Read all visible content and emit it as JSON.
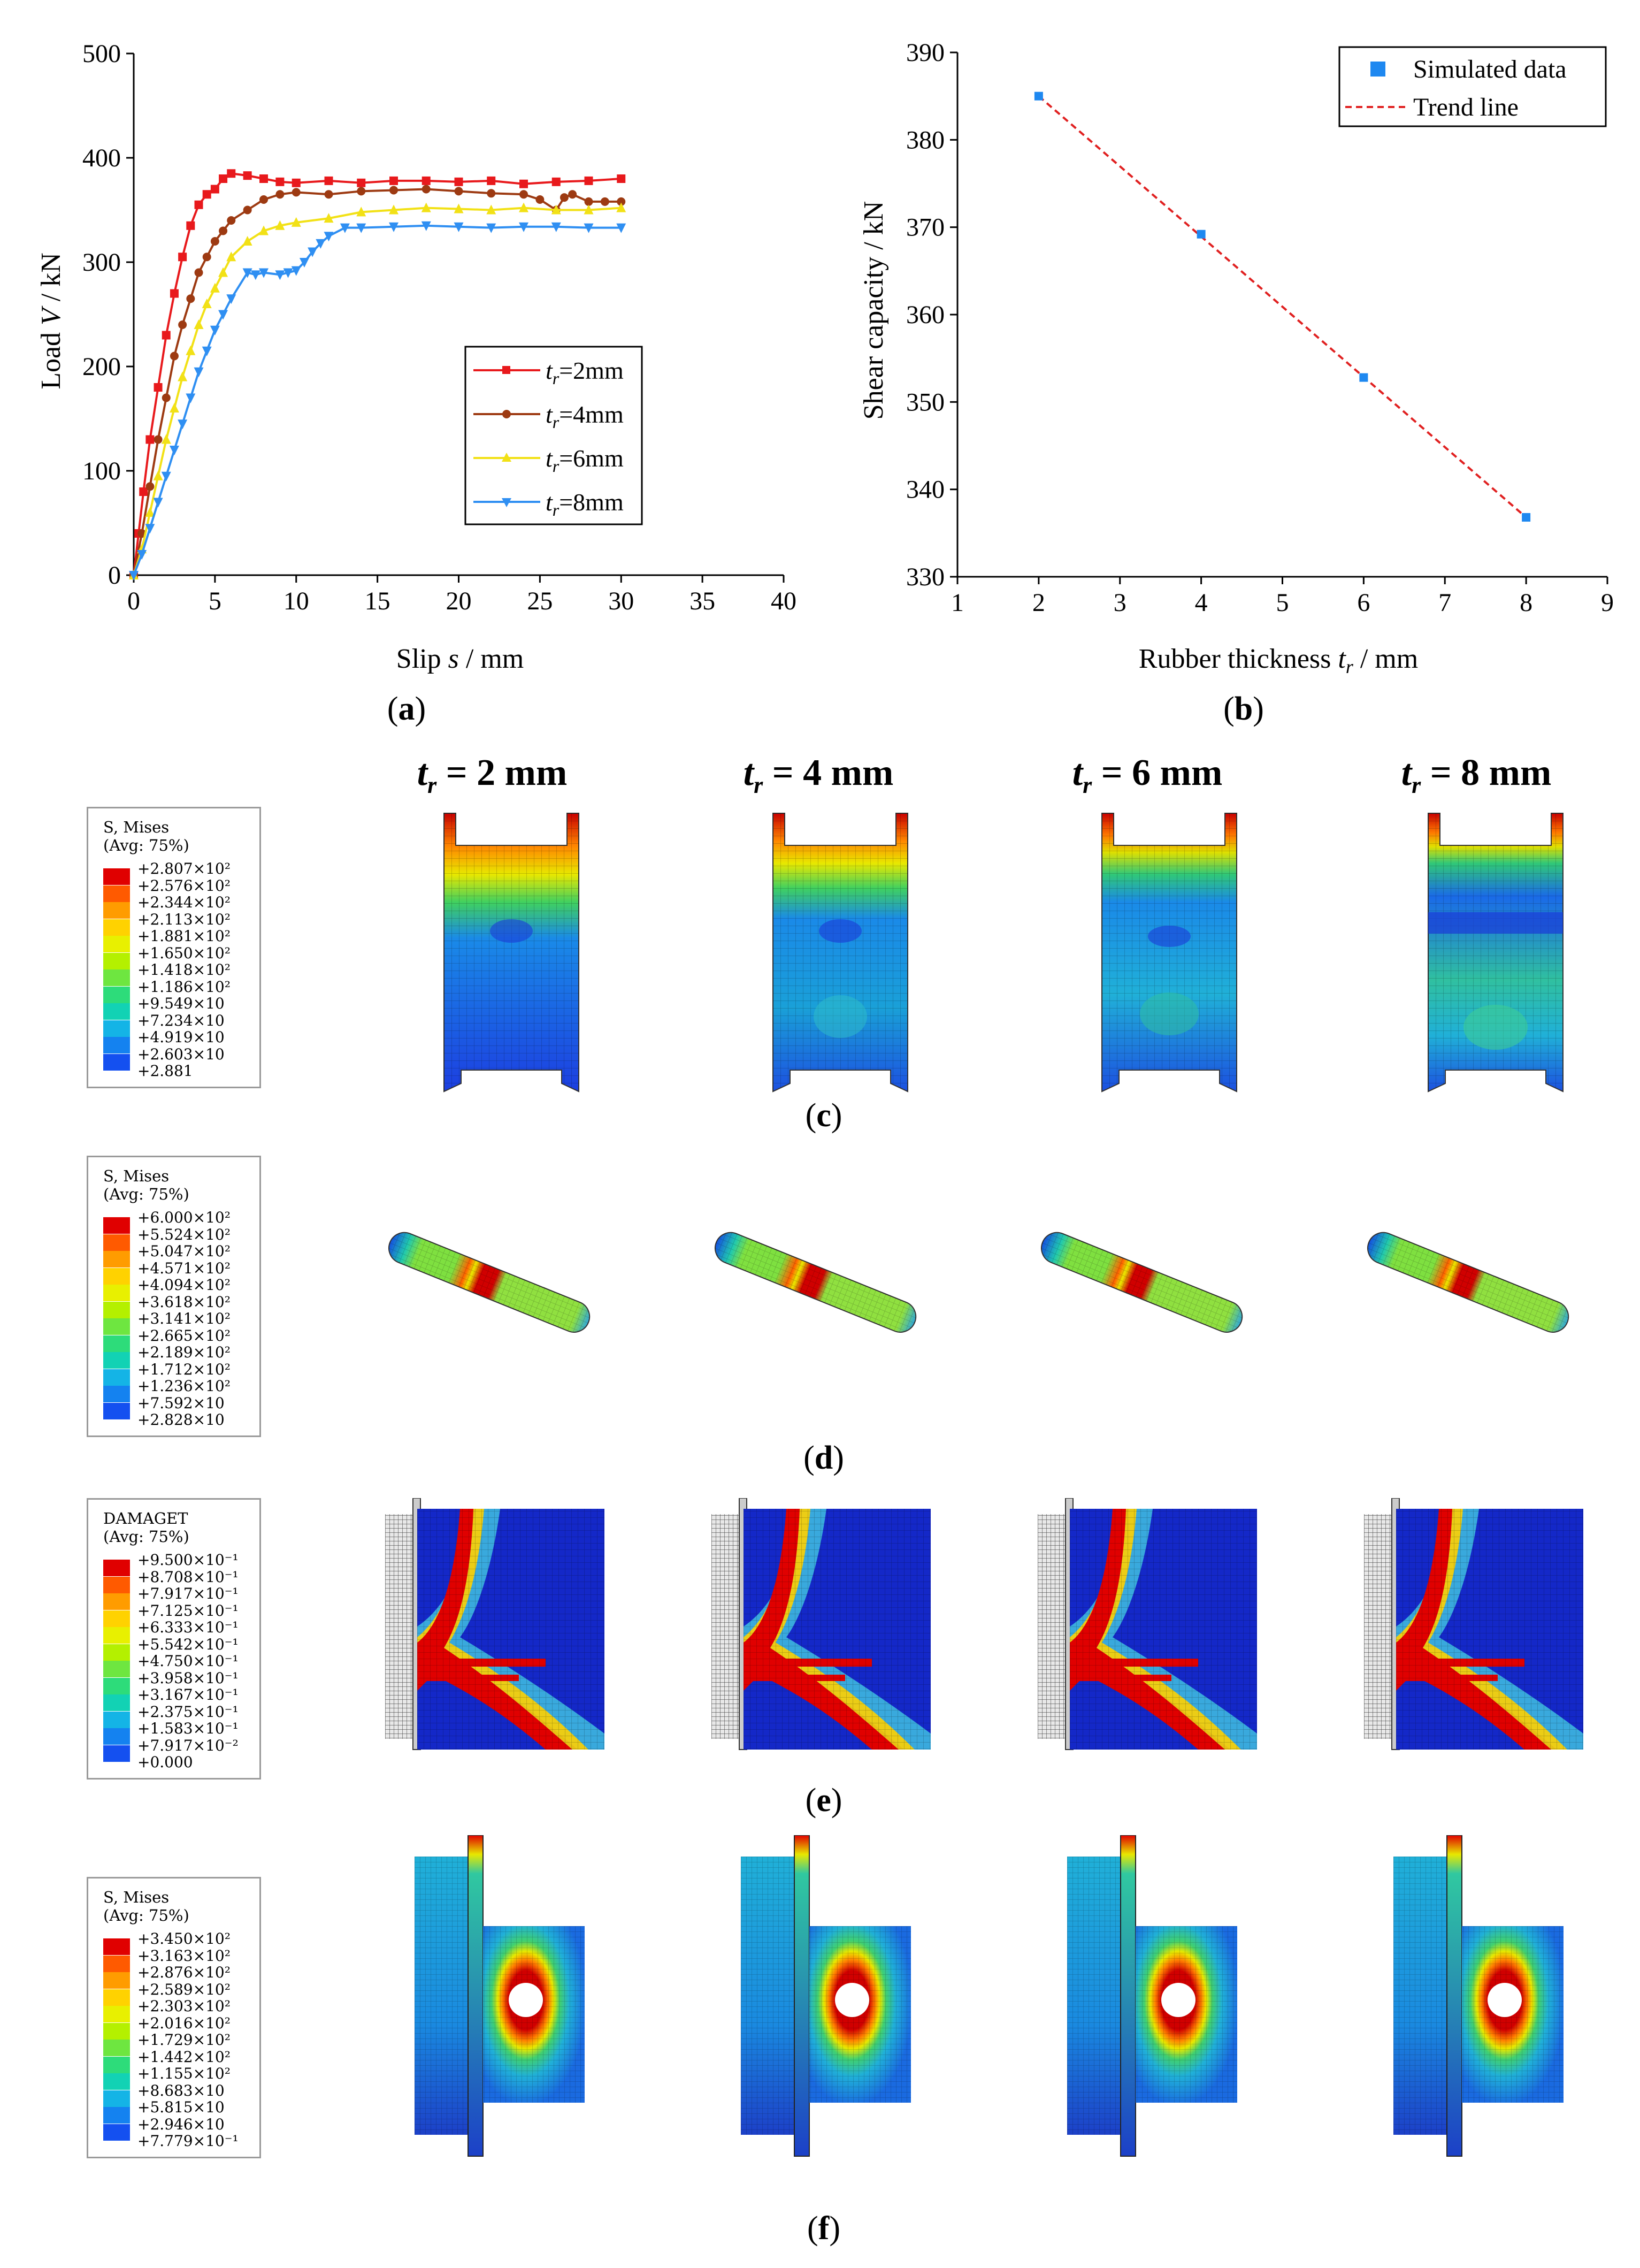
{
  "chart_data": [
    {
      "panel": "a",
      "type": "line",
      "xlabel_pre": "Slip ",
      "xlabel_var": "s",
      "xlabel_post": " / mm",
      "ylabel_pre": "Load ",
      "ylabel_var": "V",
      "ylabel_post": " / kN",
      "xlim": [
        0,
        40
      ],
      "ylim": [
        0,
        500
      ],
      "xticks": [
        0,
        5,
        10,
        15,
        20,
        25,
        30,
        35,
        40
      ],
      "yticks": [
        0,
        100,
        200,
        300,
        400,
        500
      ],
      "series": [
        {
          "name": "tr=2mm",
          "label_var": "t",
          "label_sub": "r",
          "label_post": "=2mm",
          "color": "#e8191c",
          "marker": "square",
          "x": [
            0,
            0.3,
            0.6,
            1,
            1.5,
            2,
            2.5,
            3,
            3.5,
            4,
            4.5,
            5,
            5.5,
            6,
            7,
            8,
            9,
            10,
            12,
            14,
            16,
            18,
            20,
            22,
            24,
            26,
            28,
            30
          ],
          "y": [
            0,
            40,
            80,
            130,
            180,
            230,
            270,
            305,
            335,
            355,
            365,
            370,
            380,
            385,
            383,
            380,
            377,
            376,
            378,
            376,
            378,
            378,
            377,
            378,
            375,
            377,
            378,
            380
          ]
        },
        {
          "name": "tr=4mm",
          "label_var": "t",
          "label_sub": "r",
          "label_post": "=4mm",
          "color": "#9d3a12",
          "marker": "circle",
          "x": [
            0,
            0.5,
            1,
            1.5,
            2,
            2.5,
            3,
            3.5,
            4,
            4.5,
            5,
            5.5,
            6,
            7,
            8,
            9,
            10,
            12,
            14,
            16,
            18,
            20,
            22,
            24,
            25,
            26,
            26.5,
            27,
            28,
            29,
            30
          ],
          "y": [
            0,
            40,
            85,
            130,
            170,
            210,
            240,
            265,
            290,
            305,
            320,
            330,
            340,
            350,
            360,
            365,
            367,
            365,
            368,
            369,
            370,
            368,
            366,
            365,
            360,
            350,
            362,
            365,
            358,
            358,
            358
          ]
        },
        {
          "name": "tr=6mm",
          "label_var": "t",
          "label_sub": "r",
          "label_post": "=6mm",
          "color": "#f2e116",
          "marker": "triangle-up",
          "x": [
            0,
            0.5,
            1,
            1.5,
            2,
            2.5,
            3,
            3.5,
            4,
            4.5,
            5,
            5.5,
            6,
            7,
            8,
            9,
            10,
            12,
            14,
            16,
            18,
            20,
            22,
            24,
            26,
            28,
            30
          ],
          "y": [
            0,
            25,
            60,
            95,
            130,
            160,
            190,
            215,
            240,
            260,
            275,
            290,
            305,
            320,
            330,
            335,
            338,
            342,
            348,
            350,
            352,
            351,
            350,
            352,
            350,
            350,
            352
          ]
        },
        {
          "name": "tr=8mm",
          "label_var": "t",
          "label_sub": "r",
          "label_post": "=8mm",
          "color": "#2f8ff2",
          "marker": "triangle-down",
          "x": [
            0,
            0.5,
            1,
            1.5,
            2,
            2.5,
            3,
            3.5,
            4,
            4.5,
            5,
            5.5,
            6,
            7,
            7.5,
            8,
            9,
            9.5,
            10,
            10.5,
            11,
            11.5,
            12,
            13,
            14,
            16,
            18,
            20,
            22,
            24,
            26,
            28,
            30
          ],
          "y": [
            0,
            20,
            45,
            70,
            95,
            120,
            145,
            170,
            195,
            215,
            235,
            250,
            265,
            290,
            288,
            290,
            288,
            290,
            292,
            300,
            310,
            318,
            325,
            333,
            333,
            334,
            335,
            334,
            333,
            334,
            334,
            333,
            333
          ]
        }
      ]
    },
    {
      "panel": "b",
      "type": "scatter",
      "xlabel_pre": "Rubber thickness ",
      "xlabel_var": "t",
      "xlabel_sub": "r",
      "xlabel_post": " / mm",
      "ylabel": "Shear capacity / kN",
      "xlim": [
        1,
        9
      ],
      "ylim": [
        330,
        390
      ],
      "xticks": [
        1,
        2,
        3,
        4,
        5,
        6,
        7,
        8,
        9
      ],
      "yticks": [
        330,
        340,
        350,
        360,
        370,
        380,
        390
      ],
      "series": [
        {
          "name": "Simulated data",
          "color": "#1e88f0",
          "marker": "square",
          "x": [
            2,
            4,
            6,
            8
          ],
          "y": [
            385,
            369.2,
            352.8,
            336.8
          ]
        },
        {
          "name": "Trend line",
          "color": "#e02020",
          "style": "dashed",
          "x": [
            2,
            8
          ],
          "y": [
            385,
            336.8
          ]
        }
      ]
    }
  ],
  "captions": {
    "a": "a",
    "b": "b",
    "c": "c",
    "d": "d",
    "e": "e",
    "f": "f"
  },
  "columns": [
    {
      "var": "t",
      "sub": "r",
      "text": " = 2 mm"
    },
    {
      "var": "t",
      "sub": "r",
      "text": " = 4 mm"
    },
    {
      "var": "t",
      "sub": "r",
      "text": " = 6 mm"
    },
    {
      "var": "t",
      "sub": "r",
      "text": " = 8 mm"
    }
  ],
  "legends": {
    "c": {
      "title1": "S, Mises",
      "title2": "(Avg: 75%)",
      "values": [
        "+2.807×10²",
        "+2.576×10²",
        "+2.344×10²",
        "+2.113×10²",
        "+1.881×10²",
        "+1.650×10²",
        "+1.418×10²",
        "+1.186×10²",
        "+9.549×10",
        "+7.234×10",
        "+4.919×10",
        "+2.603×10",
        "+2.881"
      ]
    },
    "d": {
      "title1": "S, Mises",
      "title2": "(Avg: 75%)",
      "values": [
        "+6.000×10²",
        "+5.524×10²",
        "+5.047×10²",
        "+4.571×10²",
        "+4.094×10²",
        "+3.618×10²",
        "+3.141×10²",
        "+2.665×10²",
        "+2.189×10²",
        "+1.712×10²",
        "+1.236×10²",
        "+7.592×10",
        "+2.828×10"
      ]
    },
    "e": {
      "title1": "DAMAGET",
      "title2": "(Avg: 75%)",
      "values": [
        "+9.500×10⁻¹",
        "+8.708×10⁻¹",
        "+7.917×10⁻¹",
        "+7.125×10⁻¹",
        "+6.333×10⁻¹",
        "+5.542×10⁻¹",
        "+4.750×10⁻¹",
        "+3.958×10⁻¹",
        "+3.167×10⁻¹",
        "+2.375×10⁻¹",
        "+1.583×10⁻¹",
        "+7.917×10⁻²",
        "+0.000"
      ]
    },
    "f": {
      "title1": "S, Mises",
      "title2": "(Avg: 75%)",
      "values": [
        "+3.450×10²",
        "+3.163×10²",
        "+2.876×10²",
        "+2.589×10²",
        "+2.303×10²",
        "+2.016×10²",
        "+1.729×10²",
        "+1.442×10²",
        "+1.155×10²",
        "+8.683×10",
        "+5.815×10",
        "+2.946×10",
        "+7.779×10⁻¹"
      ]
    }
  },
  "colors": {
    "contour": [
      "#e00000",
      "#ff5a00",
      "#ff9c00",
      "#ffd200",
      "#e8f000",
      "#b4f000",
      "#6ee640",
      "#2ddc7a",
      "#12d2b4",
      "#14b4e6",
      "#1482f0",
      "#1450f0",
      "#1414e6"
    ]
  }
}
